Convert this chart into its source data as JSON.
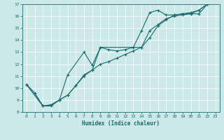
{
  "xlabel": "Humidex (Indice chaleur)",
  "bg_color": "#cce8e8",
  "line_color": "#1a6b6b",
  "xlim": [
    -0.5,
    23.5
  ],
  "ylim": [
    8,
    17
  ],
  "xticks": [
    0,
    1,
    2,
    3,
    4,
    5,
    6,
    7,
    8,
    9,
    10,
    11,
    12,
    13,
    14,
    15,
    16,
    17,
    18,
    19,
    20,
    21,
    22,
    23
  ],
  "yticks": [
    8,
    9,
    10,
    11,
    12,
    13,
    14,
    15,
    16,
    17
  ],
  "line1_x": [
    0,
    1,
    2,
    3,
    4,
    5,
    7,
    8,
    9,
    10,
    11,
    12,
    13,
    14,
    15,
    16,
    17,
    18,
    19,
    20,
    21,
    22,
    23
  ],
  "line1_y": [
    10.3,
    9.6,
    8.5,
    8.5,
    9.0,
    11.1,
    13.0,
    11.9,
    13.4,
    13.2,
    13.1,
    13.2,
    13.4,
    14.8,
    16.3,
    16.5,
    16.1,
    16.1,
    16.2,
    16.2,
    16.2,
    17.0,
    17.1
  ],
  "line2_x": [
    0,
    2,
    3,
    4,
    5,
    6,
    7,
    8,
    9,
    14,
    15,
    16,
    17,
    18,
    19,
    20,
    21,
    22,
    23
  ],
  "line2_y": [
    10.3,
    8.5,
    8.6,
    9.0,
    9.4,
    10.2,
    11.1,
    11.5,
    13.4,
    13.4,
    14.8,
    15.3,
    15.8,
    16.0,
    16.1,
    16.2,
    16.5,
    17.0,
    17.1
  ],
  "line3_x": [
    0,
    2,
    3,
    4,
    5,
    6,
    7,
    8,
    9,
    10,
    11,
    12,
    13,
    14,
    15,
    16,
    17,
    18,
    19,
    20,
    21,
    22,
    23
  ],
  "line3_y": [
    10.3,
    8.5,
    8.6,
    9.0,
    9.4,
    10.2,
    11.0,
    11.5,
    12.0,
    12.2,
    12.5,
    12.8,
    13.1,
    13.4,
    14.2,
    15.2,
    15.7,
    16.1,
    16.2,
    16.3,
    16.5,
    17.0,
    17.1
  ]
}
